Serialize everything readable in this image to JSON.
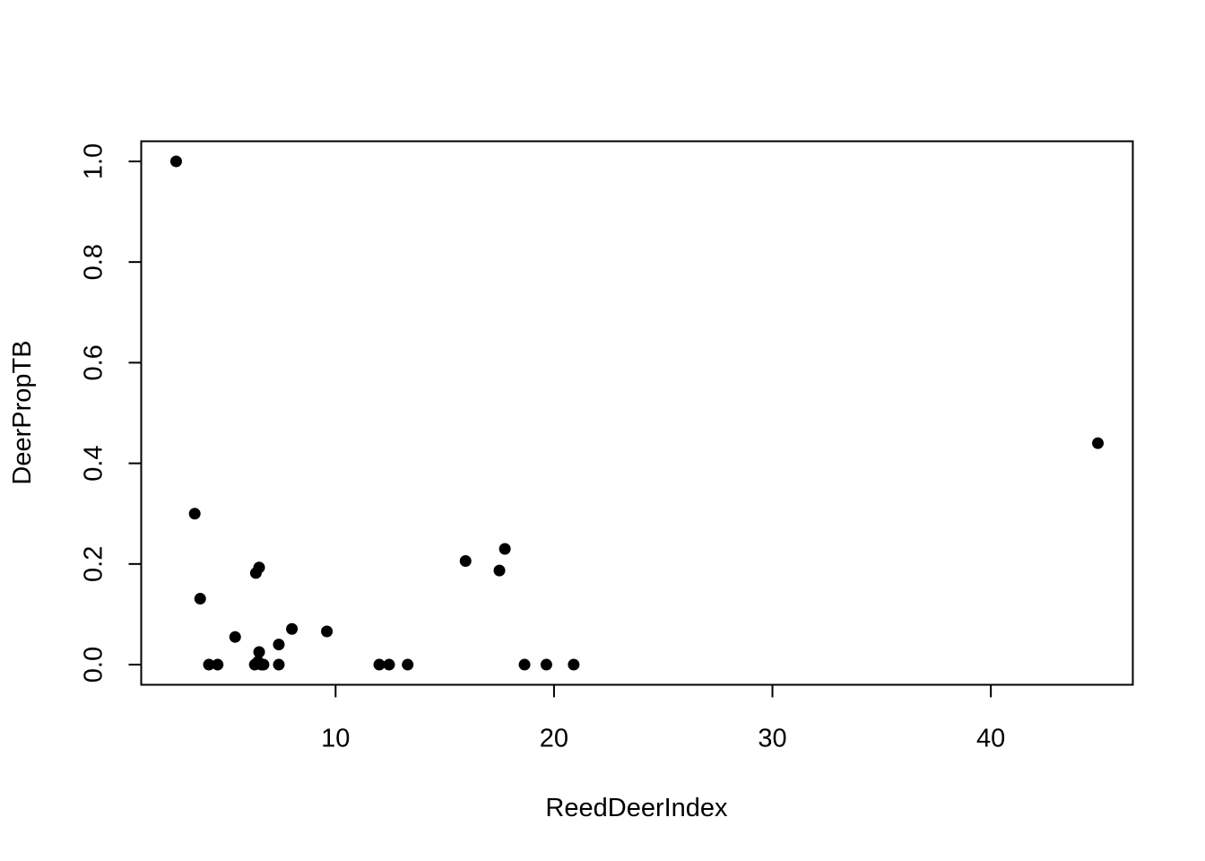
{
  "chart_data": {
    "type": "scatter",
    "xlabel": "ReedDeerIndex",
    "ylabel": "DeerPropTB",
    "xlim": [
      1.1,
      46.5
    ],
    "ylim": [
      -0.04,
      1.04
    ],
    "xticks": [
      10,
      20,
      30,
      40
    ],
    "yticks": [
      0.0,
      0.2,
      0.4,
      0.6,
      0.8,
      1.0
    ],
    "xtick_labels": [
      "10",
      "20",
      "30",
      "40"
    ],
    "ytick_labels": [
      "0.0",
      "0.2",
      "0.4",
      "0.6",
      "0.8",
      "1.0"
    ],
    "grid": false,
    "marker_color": "#000000",
    "points": [
      {
        "x": 2.7,
        "y": 1.0
      },
      {
        "x": 3.55,
        "y": 0.3
      },
      {
        "x": 3.8,
        "y": 0.131
      },
      {
        "x": 4.2,
        "y": 0.0
      },
      {
        "x": 4.6,
        "y": 0.0
      },
      {
        "x": 5.4,
        "y": 0.055
      },
      {
        "x": 6.3,
        "y": 0.0
      },
      {
        "x": 6.35,
        "y": 0.182
      },
      {
        "x": 6.45,
        "y": 0.006
      },
      {
        "x": 6.5,
        "y": 0.193
      },
      {
        "x": 6.5,
        "y": 0.025
      },
      {
        "x": 6.6,
        "y": 0.0
      },
      {
        "x": 6.7,
        "y": 0.0
      },
      {
        "x": 7.4,
        "y": 0.0
      },
      {
        "x": 7.4,
        "y": 0.04
      },
      {
        "x": 8.0,
        "y": 0.071
      },
      {
        "x": 9.6,
        "y": 0.066
      },
      {
        "x": 12.0,
        "y": 0.0
      },
      {
        "x": 12.45,
        "y": 0.0
      },
      {
        "x": 13.3,
        "y": 0.0
      },
      {
        "x": 15.95,
        "y": 0.206
      },
      {
        "x": 17.5,
        "y": 0.187
      },
      {
        "x": 17.75,
        "y": 0.23
      },
      {
        "x": 18.65,
        "y": 0.0
      },
      {
        "x": 19.65,
        "y": 0.0
      },
      {
        "x": 20.9,
        "y": 0.0
      },
      {
        "x": 44.9,
        "y": 0.44
      }
    ]
  }
}
